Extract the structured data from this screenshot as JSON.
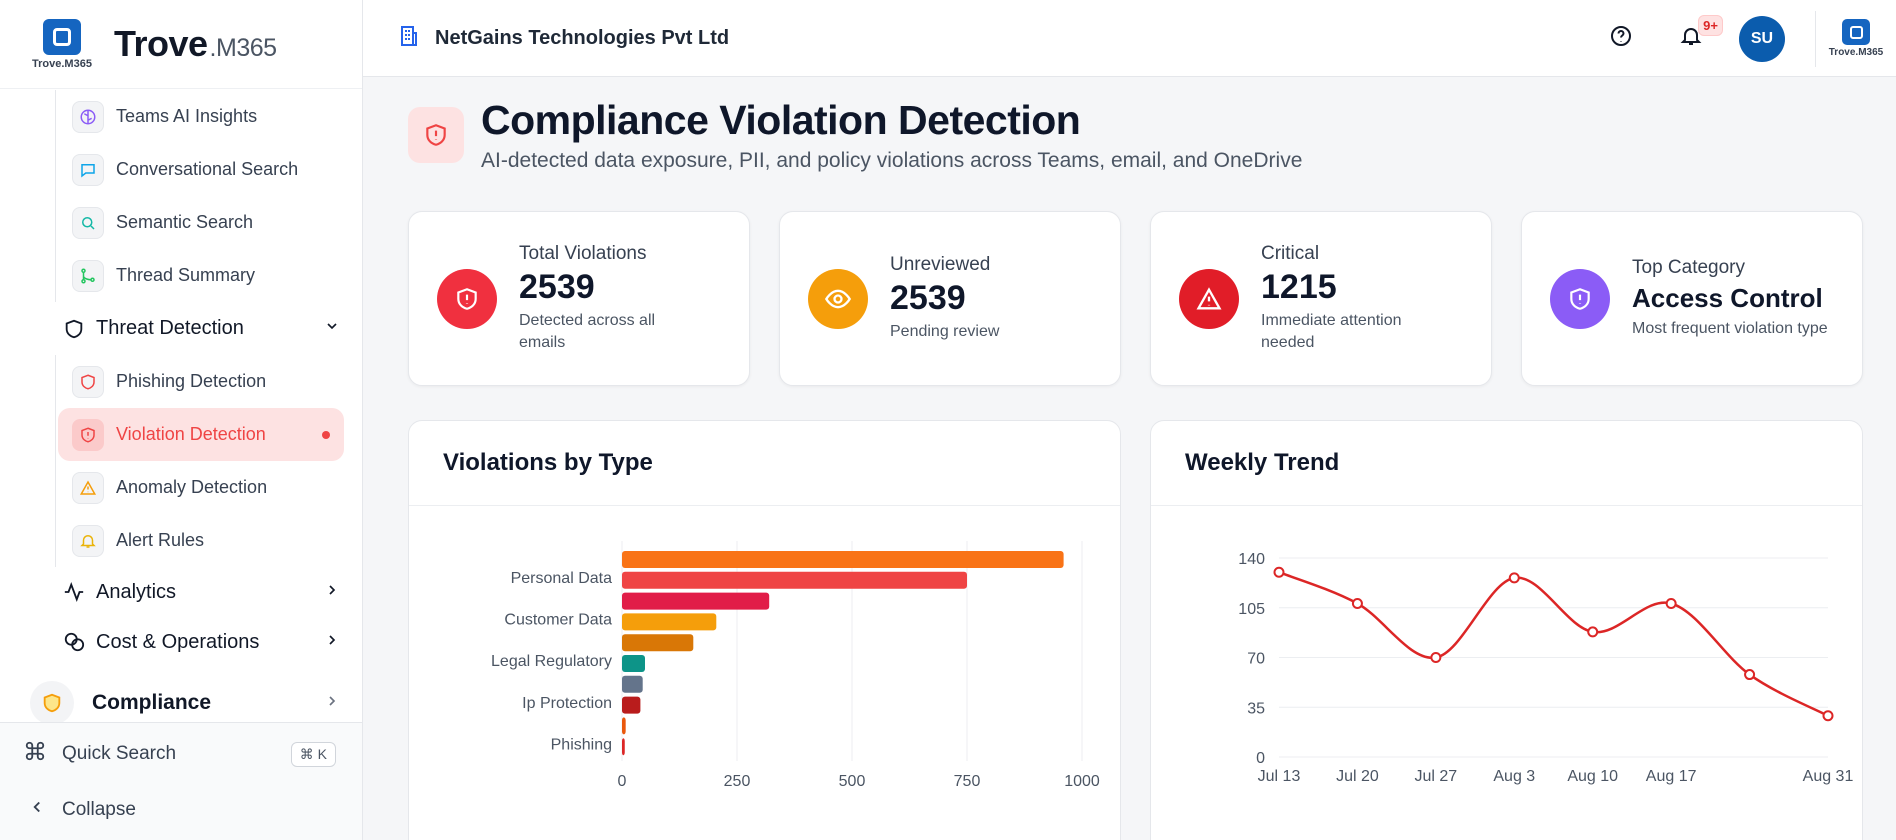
{
  "brand": {
    "name": "Trove",
    "suffix": ".M365",
    "logo_text": "Trove.M365"
  },
  "sidebar": {
    "ai_items": [
      {
        "label": "Teams AI Insights",
        "icon": "brain-icon"
      },
      {
        "label": "Conversational Search",
        "icon": "chat-icon"
      },
      {
        "label": "Semantic Search",
        "icon": "search-icon"
      },
      {
        "label": "Thread Summary",
        "icon": "git-branch-icon"
      }
    ],
    "threat_group": {
      "label": "Threat Detection"
    },
    "threat_items": [
      {
        "label": "Phishing Detection",
        "icon": "shield-icon"
      },
      {
        "label": "Violation Detection",
        "icon": "shield-alert-icon",
        "active": true
      },
      {
        "label": "Anomaly Detection",
        "icon": "warning-icon"
      },
      {
        "label": "Alert Rules",
        "icon": "bell-icon"
      }
    ],
    "analytics": {
      "label": "Analytics"
    },
    "cost": {
      "label": "Cost & Operations"
    },
    "compliance": {
      "label": "Compliance"
    },
    "quick_search": {
      "label": "Quick Search",
      "shortcut": "⌘ K"
    },
    "collapse": {
      "label": "Collapse"
    }
  },
  "topbar": {
    "org": "NetGains Technologies Pvt Ltd",
    "notification_badge": "9+",
    "avatar": "SU",
    "logo_text": "Trove.M365"
  },
  "page": {
    "title": "Compliance Violation Detection",
    "subtitle": "AI-detected data exposure, PII, and policy violations across Teams, email, and OneDrive"
  },
  "stats": [
    {
      "label": "Total Violations",
      "value": "2539",
      "sub": "Detected across all emails",
      "color": "#f0303f"
    },
    {
      "label": "Unreviewed",
      "value": "2539",
      "sub": "Pending review",
      "color": "#f59e0b"
    },
    {
      "label": "Critical",
      "value": "1215",
      "sub": "Immediate attention needed",
      "color": "#e11d28"
    },
    {
      "label": "Top Category",
      "value": "Access Control",
      "sub": "Most frequent violation type",
      "color": "#8b5cf6"
    }
  ],
  "panels": {
    "by_type": {
      "title": "Violations by Type"
    },
    "weekly": {
      "title": "Weekly Trend"
    }
  },
  "chart_data": [
    {
      "type": "bar",
      "orientation": "horizontal",
      "categories": [
        "",
        "Personal Data",
        "",
        "Customer Data",
        "",
        "Legal Regulatory",
        "",
        "Ip Protection",
        "",
        "Phishing"
      ],
      "values": [
        960,
        750,
        320,
        205,
        155,
        50,
        45,
        40,
        8,
        6
      ],
      "colors": [
        "#f97316",
        "#ef4444",
        "#e11d48",
        "#f59e0b",
        "#d97706",
        "#0d9488",
        "#64748b",
        "#b91c1c",
        "#ea580c",
        "#dc2626"
      ],
      "xticks": [
        "0",
        "250",
        "500",
        "750",
        "1000"
      ],
      "xlim": [
        0,
        1000
      ],
      "grid": true
    },
    {
      "type": "line",
      "x": [
        "Jul 13",
        "Jul 20",
        "Jul 27",
        "Aug 3",
        "Aug 10",
        "Aug 17",
        "Aug 24",
        "Aug 31"
      ],
      "xticks": [
        "Jul 13",
        "Jul 20",
        "Jul 27",
        "Aug 3",
        "Aug 10",
        "Aug 17",
        "Aug 31"
      ],
      "values": [
        130,
        108,
        70,
        126,
        88,
        108,
        58,
        29
      ],
      "yticks": [
        "0",
        "35",
        "70",
        "105",
        "140"
      ],
      "ylim": [
        0,
        140
      ],
      "color": "#dc2626",
      "grid": true
    }
  ]
}
